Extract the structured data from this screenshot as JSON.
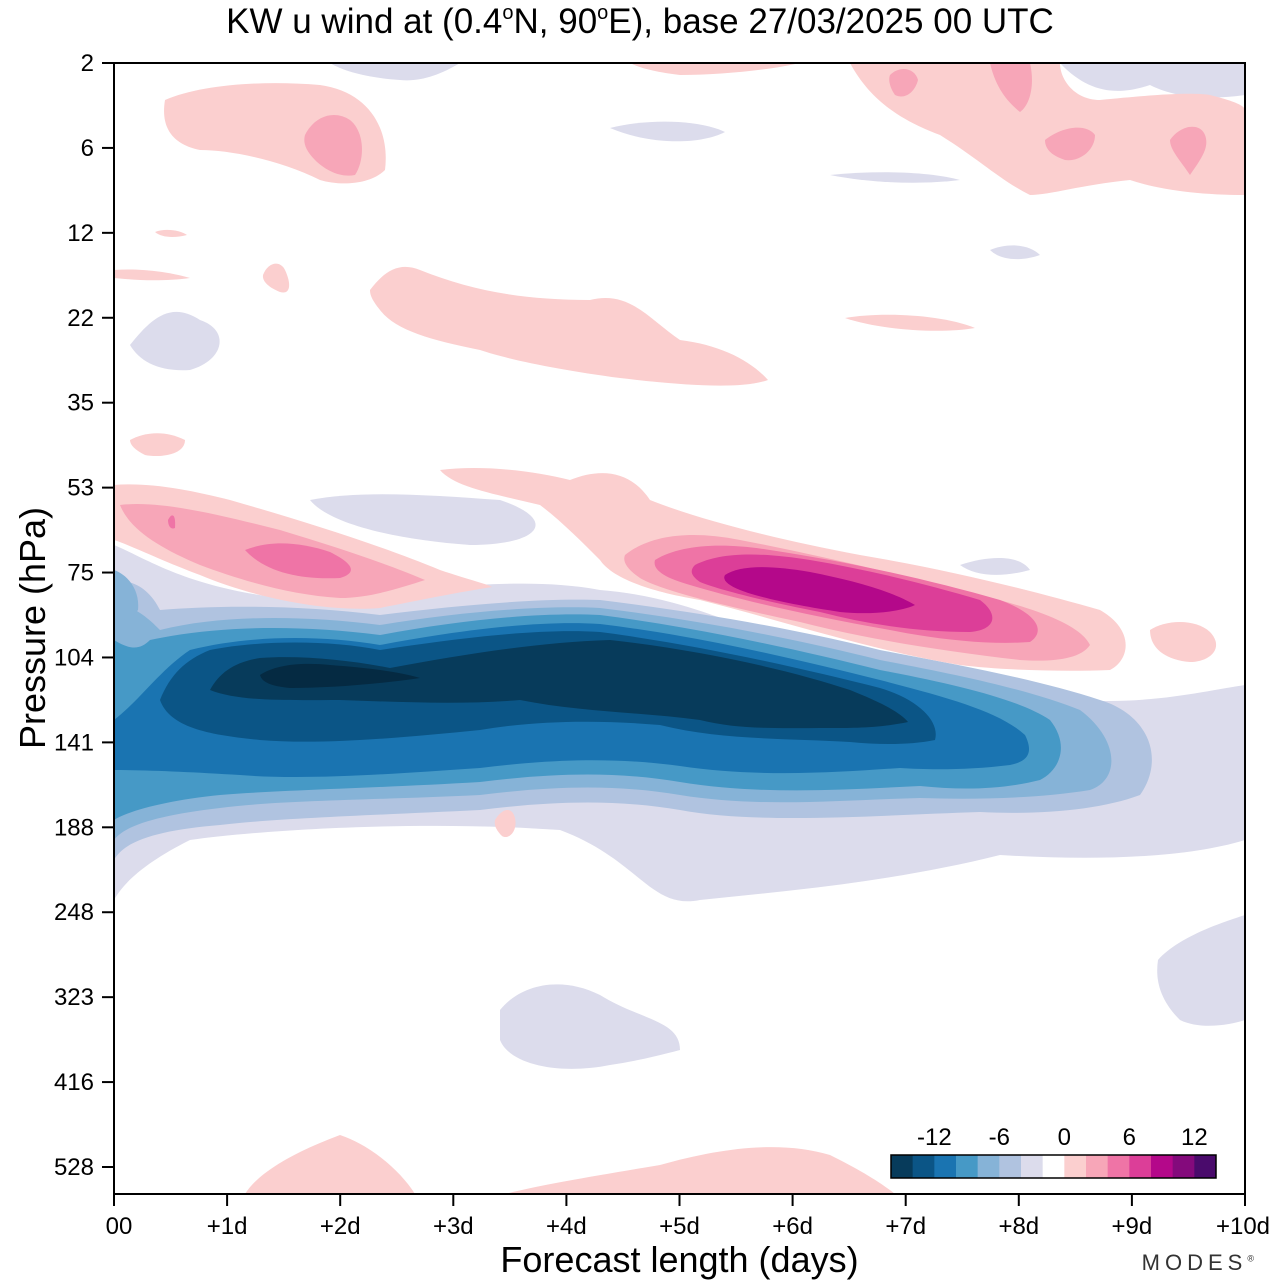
{
  "title": {
    "prefix": "KW u wind at (0.4",
    "deg1": "o",
    "mid": "N, 90",
    "deg2": "o",
    "suffix": "E),  base 27/03/2025  00 UTC"
  },
  "brand": {
    "name": "MODES",
    "mark": "®"
  },
  "chart_data": {
    "type": "heatmap",
    "xlabel": "Forecast length (days)",
    "ylabel": "Pressure (hPa)",
    "x_ticks": [
      "00",
      "+1d",
      "+2d",
      "+3d",
      "+4d",
      "+5d",
      "+6d",
      "+7d",
      "+8d",
      "+9d",
      "+10d"
    ],
    "xlim": [
      0,
      10
    ],
    "y_ticks": [
      "2",
      "6",
      "12",
      "22",
      "35",
      "53",
      "75",
      "104",
      "141",
      "188",
      "248",
      "323",
      "416",
      "528"
    ],
    "colorbar": {
      "labels": [
        -12,
        -6,
        0,
        6,
        12
      ],
      "levels": [
        -14,
        -12,
        -10,
        -8,
        -6,
        -4,
        -2,
        0,
        2,
        4,
        6,
        8,
        10,
        12,
        14
      ],
      "colors": [
        "#073b5b",
        "#0b5586",
        "#1a74b1",
        "#4699c6",
        "#86b3d7",
        "#b0c3e0",
        "#dcdcec",
        "#ffffff",
        "#fbcfcf",
        "#f7a6b8",
        "#ef74a6",
        "#dc3e98",
        "#b4088a",
        "#840a7c",
        "#4a0b6c"
      ]
    },
    "features": [
      {
        "name": "negative jet core",
        "level": -14,
        "x_days": [
          1.3,
          7
        ],
        "pressure_hPa": [
          108,
          135
        ]
      },
      {
        "name": "negative jet band",
        "level": -4,
        "x_days": [
          0,
          9.2
        ],
        "pressure_hPa": [
          88,
          188
        ]
      },
      {
        "name": "positive band low",
        "level": 12,
        "x_days": [
          5.5,
          7.0
        ],
        "pressure_hPa": [
          75,
          95
        ]
      },
      {
        "name": "positive band upper-left",
        "level": 6,
        "x_days": [
          1.2,
          2.2
        ],
        "pressure_hPa": [
          65,
          80
        ]
      }
    ]
  }
}
